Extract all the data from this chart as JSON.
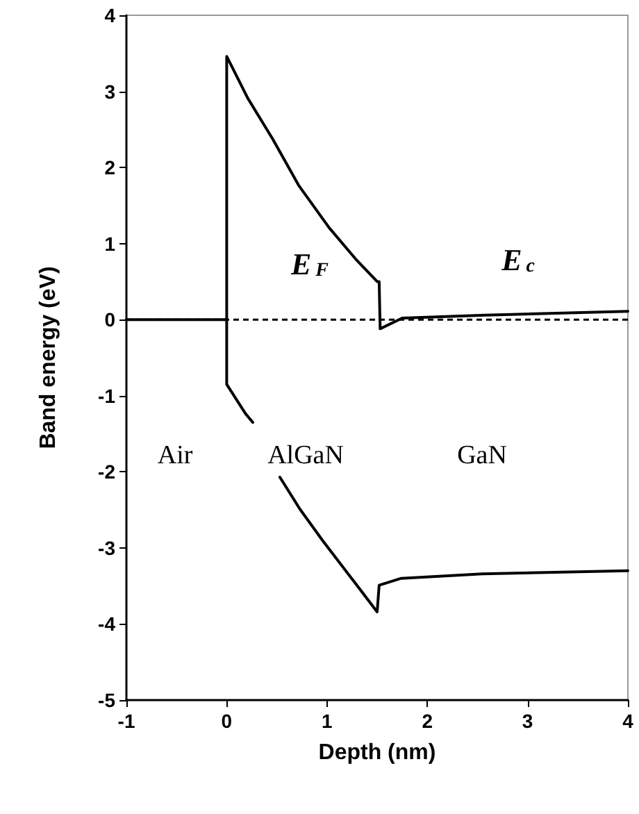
{
  "chart_data": {
    "type": "line",
    "xlabel": "Depth (nm)",
    "ylabel": "Band energy (eV)",
    "xlim": [
      -1,
      4
    ],
    "xticks": [
      -1,
      0,
      1,
      2,
      3,
      4
    ],
    "ylim": [
      -5,
      4
    ],
    "yticks": [
      -5,
      -4,
      -3,
      -2,
      -1,
      0,
      1,
      2,
      3,
      4
    ],
    "grid": false,
    "marker": "none",
    "series": [
      {
        "color": "#000000",
        "x": [
          -1,
          0,
          0,
          0.21,
          0.46,
          0.72,
          1.02,
          1.29,
          1.5,
          1.52,
          1.53,
          1.75,
          2.58,
          4
        ],
        "values": [
          0,
          0,
          3.46,
          2.91,
          2.37,
          1.76,
          1.21,
          0.79,
          0.5,
          0.5,
          -0.12,
          0.02,
          0.06,
          0.11
        ]
      },
      {
        "color": "#000000",
        "x": [
          0,
          0,
          0.19,
          0.26,
          0.4,
          0.53,
          0.73,
          0.96,
          1.28,
          1.5,
          1.52,
          1.74,
          2.55,
          4
        ],
        "values": [
          0,
          -0.85,
          -1.24,
          -1.35,
          null,
          -2.07,
          -2.49,
          -2.91,
          -3.46,
          -3.84,
          -3.49,
          -3.4,
          -3.34,
          -3.3
        ]
      }
    ],
    "ref_lines": [
      {
        "axis": "y",
        "value": 0,
        "color": "#000000",
        "line_style": "dashed"
      }
    ],
    "annotations": [
      "E$_{F}$",
      "E$_{c}$",
      "Air",
      "AlGaN",
      "GaN"
    ]
  }
}
